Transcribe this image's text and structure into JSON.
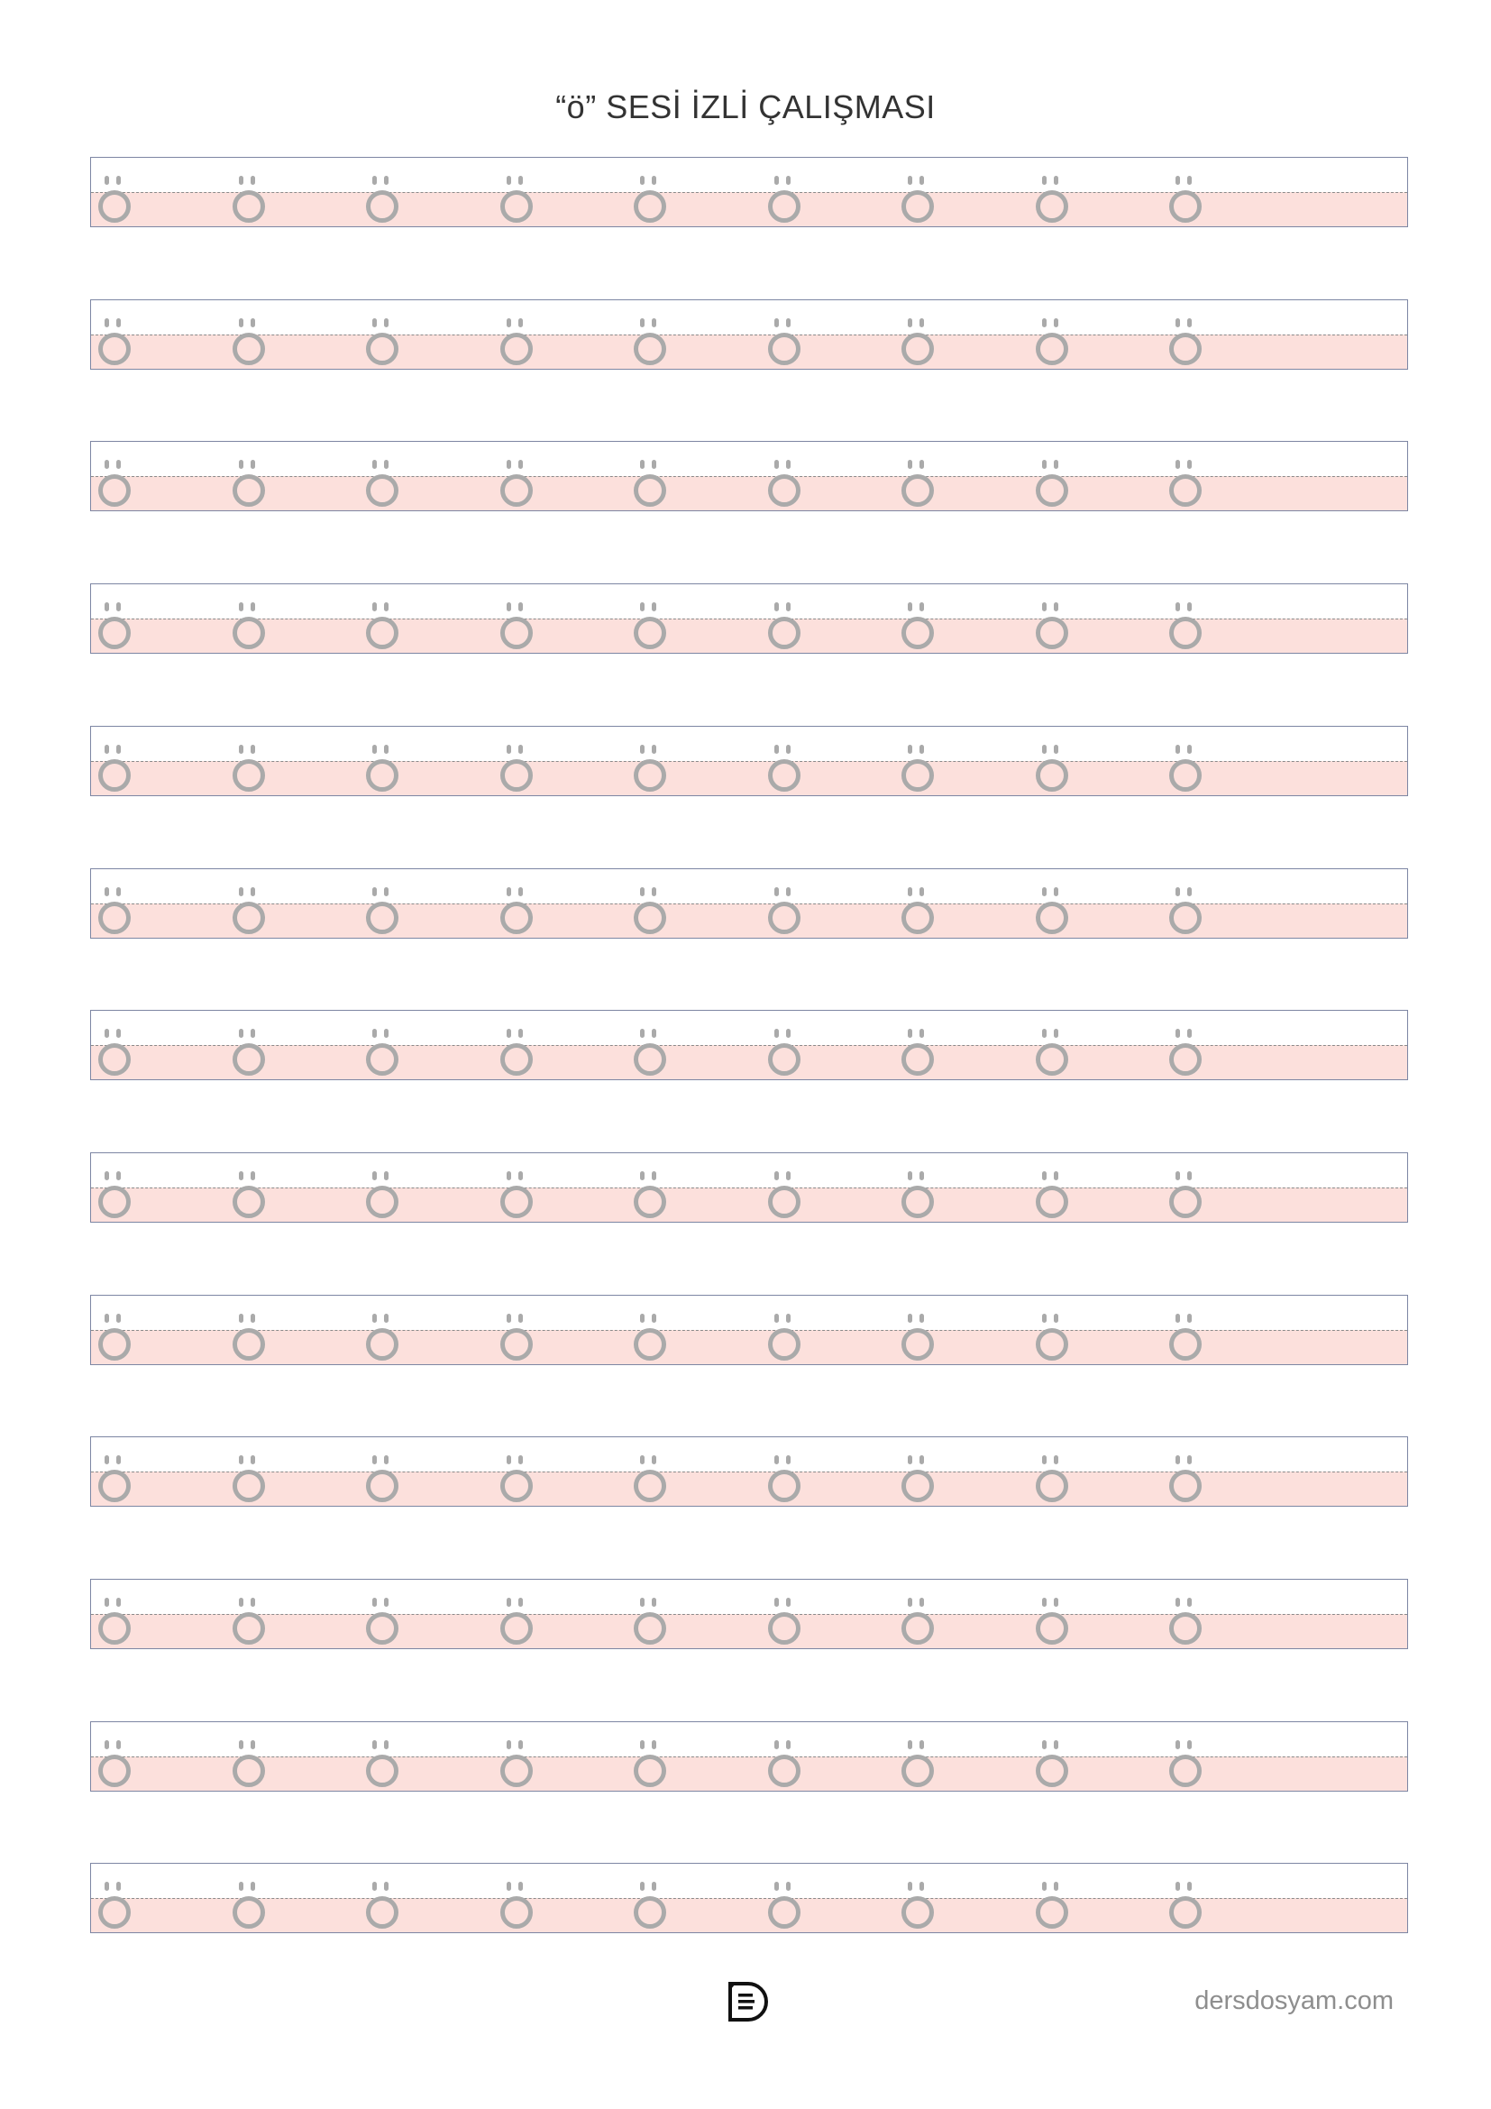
{
  "title": "“ö” SESİ İZLİ ÇALIŞMASI",
  "worksheet": {
    "trace_letter": "ö",
    "rows": 13,
    "letters_per_row": 9,
    "colors": {
      "guide_fill": "#fce0dc",
      "trace_gray": "#aaaaaa",
      "border": "#7d86a3"
    }
  },
  "footer": {
    "logo_icon": "dersdosyam-logo-icon",
    "site": "dersdosyam.com"
  }
}
